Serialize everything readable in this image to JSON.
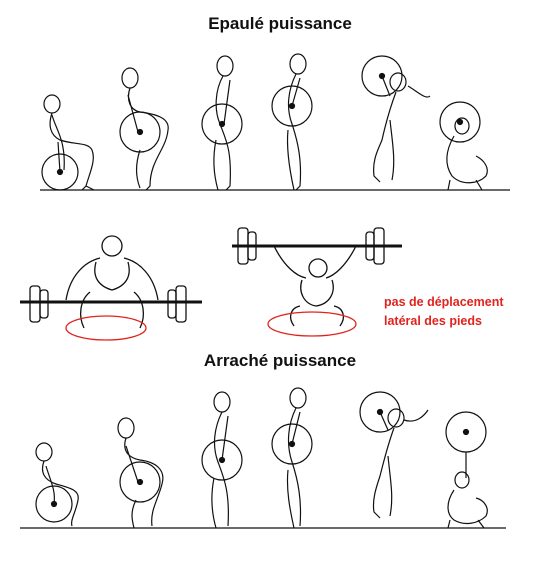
{
  "diagram": {
    "title_top": "Epaulé puissance",
    "title_bottom": "Arraché puissance",
    "note_line1": "pas de déplacement",
    "note_line2": "latéral des pieds",
    "colors": {
      "ink": "#111111",
      "note": "#e0231d",
      "ellipse": "#e0231d"
    }
  }
}
